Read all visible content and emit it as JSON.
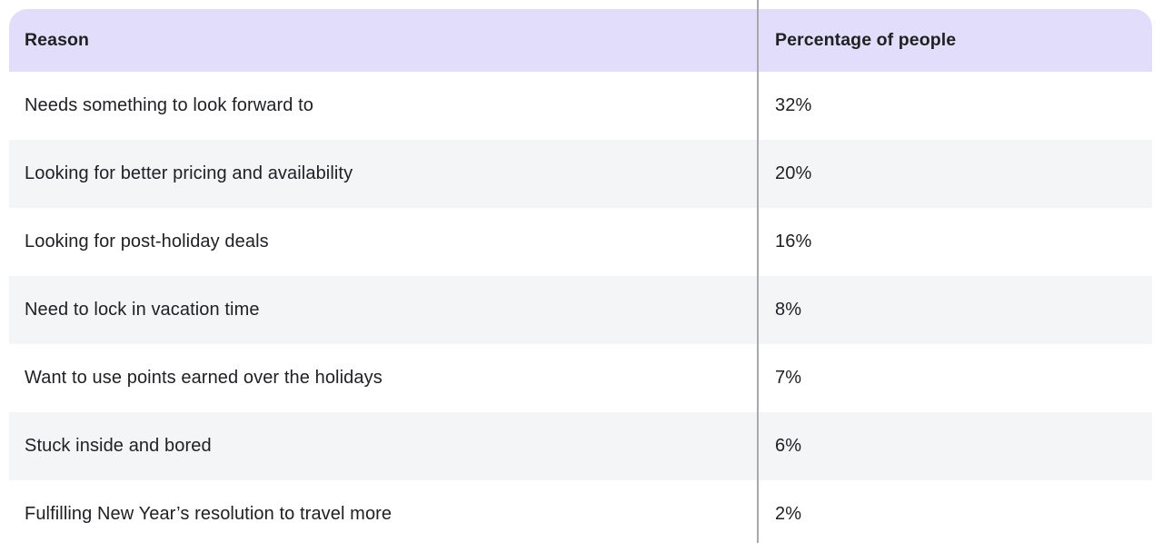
{
  "table": {
    "columns": [
      {
        "label": "Reason"
      },
      {
        "label": "Percentage of people"
      }
    ],
    "rows": [
      {
        "reason": "Needs something to look forward to",
        "percentage": "32%"
      },
      {
        "reason": "Looking for better pricing and availability",
        "percentage": "20%"
      },
      {
        "reason": "Looking for post-holiday deals",
        "percentage": "16%"
      },
      {
        "reason": "Need to lock in vacation time",
        "percentage": "8%"
      },
      {
        "reason": "Want to use points earned over the holidays",
        "percentage": "7%"
      },
      {
        "reason": "Stuck inside and bored",
        "percentage": "6%"
      },
      {
        "reason": "Fulfilling New Year’s resolution to travel more",
        "percentage": "2%"
      }
    ]
  },
  "colors": {
    "header_bg": "#e2ddfb",
    "alt_row_bg": "#f4f5f7",
    "row_bg": "#ffffff",
    "divider": "#aaa7ae",
    "text": "#202124"
  },
  "chart_data": {
    "type": "table",
    "columns": [
      "Reason",
      "Percentage of people"
    ],
    "categories": [
      "Needs something to look forward to",
      "Looking for better pricing and availability",
      "Looking for post-holiday deals",
      "Need to lock in vacation time",
      "Want to use points earned over the holidays",
      "Stuck inside and bored",
      "Fulfilling New Year’s resolution to travel more"
    ],
    "values": [
      32,
      20,
      16,
      8,
      7,
      6,
      2
    ],
    "unit": "%",
    "layout": {
      "header_highlighted": true,
      "zebra_striping": true,
      "column_divider": true
    }
  }
}
